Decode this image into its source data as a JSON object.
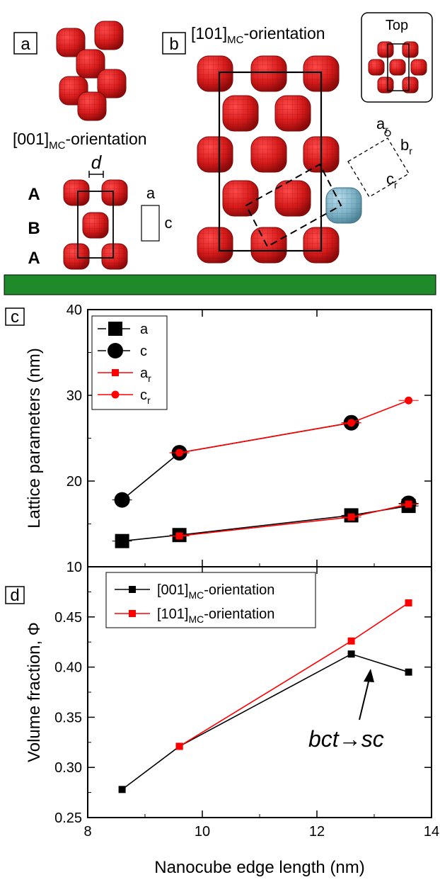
{
  "panels": {
    "a": {
      "label": "a",
      "orientation_prefix": "[001]",
      "orientation_sub": "MC",
      "orientation_suffix": "-orientation",
      "gap_symbol": "d",
      "layer_labels": [
        "A",
        "B",
        "A"
      ],
      "cell_labels": [
        "a",
        "c"
      ]
    },
    "b": {
      "label": "b",
      "orientation_prefix": "[101]",
      "orientation_sub": "MC",
      "orientation_suffix": "-orientation",
      "inset_title": "Top",
      "cell_labels": [
        {
          "base": "a",
          "sub": "r"
        },
        {
          "base": "b",
          "sub": "r"
        },
        {
          "base": "c",
          "sub": "r"
        }
      ]
    },
    "c": {
      "label": "c"
    },
    "d": {
      "label": "d"
    }
  },
  "colors": {
    "cube": "#d61a1a",
    "cube_highlight": "#7fb3c8",
    "divider": "#1f8a2a",
    "series_black": "#000000",
    "series_red": "#ff0000"
  },
  "chart_data": [
    {
      "type": "line",
      "panel": "c",
      "ylabel": "Lattice parameters (nm)",
      "xlim": [
        8,
        14
      ],
      "ylim": [
        10,
        40
      ],
      "yticks": [
        10,
        20,
        30,
        40
      ],
      "legend_position": "top-left",
      "series": [
        {
          "name": "a",
          "sub": "",
          "color": "#000000",
          "marker": "square-large",
          "dashed": true,
          "x": [
            8.6,
            9.6,
            12.6,
            13.6
          ],
          "y": [
            13.0,
            13.7,
            16.0,
            17.1
          ]
        },
        {
          "name": "c",
          "sub": "",
          "color": "#000000",
          "marker": "circle-large",
          "dashed": true,
          "x": [
            8.6,
            9.6,
            12.6,
            13.6
          ],
          "y": [
            17.8,
            23.3,
            26.8,
            17.4
          ]
        },
        {
          "name": "a",
          "sub": "r",
          "color": "#ff0000",
          "marker": "square-small",
          "dashed": false,
          "x": [
            9.6,
            12.6,
            13.6
          ],
          "y": [
            13.6,
            15.8,
            17.3
          ]
        },
        {
          "name": "c",
          "sub": "r",
          "color": "#ff0000",
          "marker": "circle-small",
          "dashed": false,
          "x": [
            9.6,
            12.6,
            13.6
          ],
          "y": [
            23.3,
            26.8,
            29.4
          ]
        }
      ]
    },
    {
      "type": "line",
      "panel": "d",
      "xlabel": "Nanocube edge length (nm)",
      "ylabel": "Volume fraction, Φ",
      "xlim": [
        8,
        14
      ],
      "ylim": [
        0.25,
        0.5
      ],
      "xticks": [
        8,
        10,
        12,
        14
      ],
      "yticks": [
        0.25,
        0.3,
        0.35,
        0.4,
        0.45
      ],
      "legend_position": "top-left",
      "annotation": "bct→sc",
      "series": [
        {
          "name": "[001]",
          "sub": "MC",
          "suffix": "-orientation",
          "color": "#000000",
          "x": [
            8.6,
            9.6,
            12.6,
            13.6
          ],
          "y": [
            0.278,
            0.321,
            0.413,
            0.395
          ]
        },
        {
          "name": "[101]",
          "sub": "MC",
          "suffix": "-orientation",
          "color": "#ff0000",
          "x": [
            9.6,
            12.6,
            13.6
          ],
          "y": [
            0.321,
            0.426,
            0.464
          ]
        }
      ]
    }
  ]
}
